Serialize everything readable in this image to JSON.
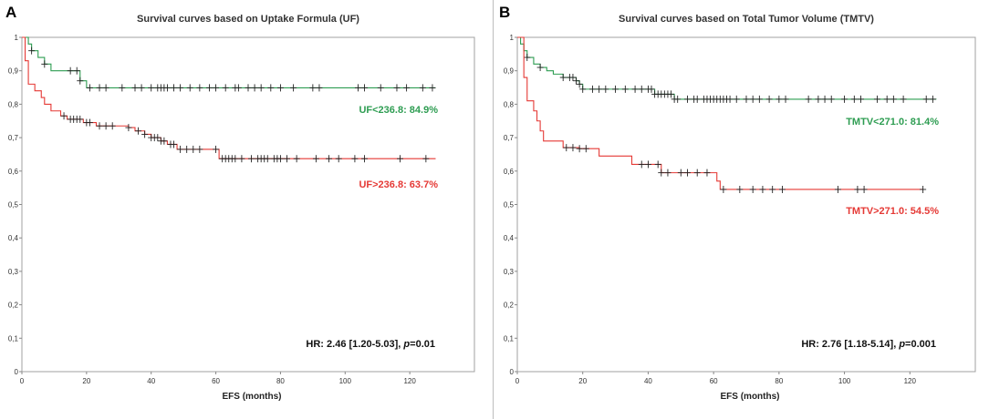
{
  "chart_data": [
    {
      "type": "line",
      "panel_letter": "A",
      "title": "Survival curves based on Uptake Formula (UF)",
      "xlabel": "EFS (months)",
      "ylabel": "",
      "xlim": [
        0,
        140
      ],
      "ylim": [
        0,
        1
      ],
      "x_ticks": [
        0,
        20,
        40,
        60,
        80,
        100,
        120
      ],
      "x_tick_labels": [
        "0",
        "20",
        "40",
        "60",
        "80",
        "100",
        "120"
      ],
      "y_ticks": [
        0,
        0.1,
        0.2,
        0.3,
        0.4,
        0.5,
        0.6,
        0.7,
        0.8,
        0.9,
        1
      ],
      "y_tick_labels": [
        "0",
        "0,1",
        "0,2",
        "0,3",
        "0,4",
        "0,5",
        "0,6",
        "0,7",
        "0,8",
        "0,9",
        "1"
      ],
      "grid": false,
      "annotation": {
        "hr": "HR: 2.46 [1.20-5.03], ",
        "p_label": "p",
        "p_value": "=0.01"
      },
      "series": [
        {
          "name": "UF<236.8",
          "label": "UF<236.8: 84.9%",
          "color": "#2e9d52",
          "steps": [
            [
              0,
              1
            ],
            [
              2,
              0.98
            ],
            [
              3,
              0.96
            ],
            [
              5,
              0.94
            ],
            [
              7,
              0.92
            ],
            [
              9,
              0.9
            ],
            [
              15,
              0.9
            ],
            [
              18,
              0.87
            ],
            [
              20,
              0.849
            ],
            [
              128,
              0.849
            ]
          ],
          "censored": [
            3,
            7,
            15,
            17,
            18,
            21,
            24,
            26,
            31,
            35,
            37,
            40,
            42,
            43,
            44,
            45,
            47,
            49,
            52,
            55,
            58,
            60,
            63,
            66,
            67,
            70,
            72,
            74,
            77,
            80,
            84,
            90,
            92,
            104,
            106,
            111,
            116,
            119,
            124,
            127
          ]
        },
        {
          "name": "UF>236.8",
          "label": "UF>236.8: 63.7%",
          "color": "#e53935",
          "steps": [
            [
              0,
              1
            ],
            [
              1,
              0.93
            ],
            [
              2,
              0.86
            ],
            [
              4,
              0.84
            ],
            [
              6,
              0.82
            ],
            [
              7,
              0.8
            ],
            [
              9,
              0.78
            ],
            [
              12,
              0.765
            ],
            [
              14,
              0.755
            ],
            [
              19,
              0.745
            ],
            [
              23,
              0.735
            ],
            [
              33,
              0.73
            ],
            [
              35,
              0.72
            ],
            [
              38,
              0.71
            ],
            [
              40,
              0.7
            ],
            [
              43,
              0.69
            ],
            [
              45,
              0.68
            ],
            [
              48,
              0.665
            ],
            [
              60,
              0.665
            ],
            [
              61,
              0.637
            ],
            [
              128,
              0.637
            ]
          ],
          "censored": [
            13,
            15,
            16,
            17,
            18,
            20,
            21,
            24,
            26,
            28,
            33,
            36,
            38,
            40,
            41,
            42,
            43,
            44,
            46,
            47,
            49,
            51,
            53,
            55,
            60,
            62,
            63,
            64,
            65,
            66,
            68,
            71,
            73,
            74,
            75,
            76,
            78,
            79,
            80,
            82,
            85,
            91,
            95,
            98,
            103,
            106,
            117,
            125
          ]
        }
      ]
    },
    {
      "type": "line",
      "panel_letter": "B",
      "title": "Survival curves based on Total Tumor Volume (TMTV)",
      "xlabel": "EFS (months)",
      "ylabel": "",
      "xlim": [
        0,
        140
      ],
      "ylim": [
        0,
        1
      ],
      "x_ticks": [
        0,
        20,
        40,
        60,
        80,
        100,
        120
      ],
      "x_tick_labels": [
        "0",
        "20",
        "40",
        "60",
        "80",
        "100",
        "120"
      ],
      "y_ticks": [
        0,
        0.1,
        0.2,
        0.3,
        0.4,
        0.5,
        0.6,
        0.7,
        0.8,
        0.9,
        1
      ],
      "y_tick_labels": [
        "0",
        "0,1",
        "0,2",
        "0,3",
        "0,4",
        "0,5",
        "0,6",
        "0,7",
        "0,8",
        "0,9",
        "1"
      ],
      "grid": false,
      "annotation": {
        "hr": "HR: 2.76 [1.18-5.14], ",
        "p_label": "p",
        "p_value": "=0.001"
      },
      "series": [
        {
          "name": "TMTV<271.0",
          "label": "TMTV<271.0: 81.4%",
          "color": "#2e9d52",
          "steps": [
            [
              0,
              1
            ],
            [
              1,
              0.98
            ],
            [
              2,
              0.96
            ],
            [
              3,
              0.94
            ],
            [
              5,
              0.92
            ],
            [
              7,
              0.91
            ],
            [
              9,
              0.9
            ],
            [
              11,
              0.89
            ],
            [
              14,
              0.88
            ],
            [
              18,
              0.87
            ],
            [
              19,
              0.86
            ],
            [
              20,
              0.845
            ],
            [
              42,
              0.83
            ],
            [
              48,
              0.815
            ],
            [
              128,
              0.814
            ]
          ],
          "censored": [
            3,
            7,
            14,
            16,
            17,
            18,
            19,
            20,
            23,
            25,
            27,
            30,
            33,
            36,
            38,
            40,
            41,
            42,
            43,
            44,
            45,
            46,
            47,
            48,
            49,
            52,
            54,
            55,
            57,
            58,
            59,
            60,
            61,
            62,
            63,
            64,
            65,
            67,
            70,
            72,
            74,
            77,
            80,
            82,
            89,
            92,
            94,
            96,
            100,
            103,
            105,
            110,
            113,
            115,
            118,
            125,
            127
          ]
        },
        {
          "name": "TMTV>271.0",
          "label": "TMTV>271.0: 54.5%",
          "color": "#e53935",
          "steps": [
            [
              0,
              1
            ],
            [
              2,
              0.88
            ],
            [
              3,
              0.81
            ],
            [
              5,
              0.78
            ],
            [
              6,
              0.75
            ],
            [
              7,
              0.72
            ],
            [
              8,
              0.69
            ],
            [
              14,
              0.67
            ],
            [
              19,
              0.667
            ],
            [
              25,
              0.645
            ],
            [
              35,
              0.62
            ],
            [
              44,
              0.595
            ],
            [
              61,
              0.57
            ],
            [
              62,
              0.545
            ],
            [
              124,
              0.545
            ]
          ],
          "censored": [
            15,
            17,
            19,
            21,
            38,
            40,
            43,
            44,
            46,
            50,
            52,
            55,
            58,
            63,
            68,
            72,
            75,
            78,
            81,
            98,
            104,
            106,
            124
          ]
        }
      ]
    }
  ]
}
